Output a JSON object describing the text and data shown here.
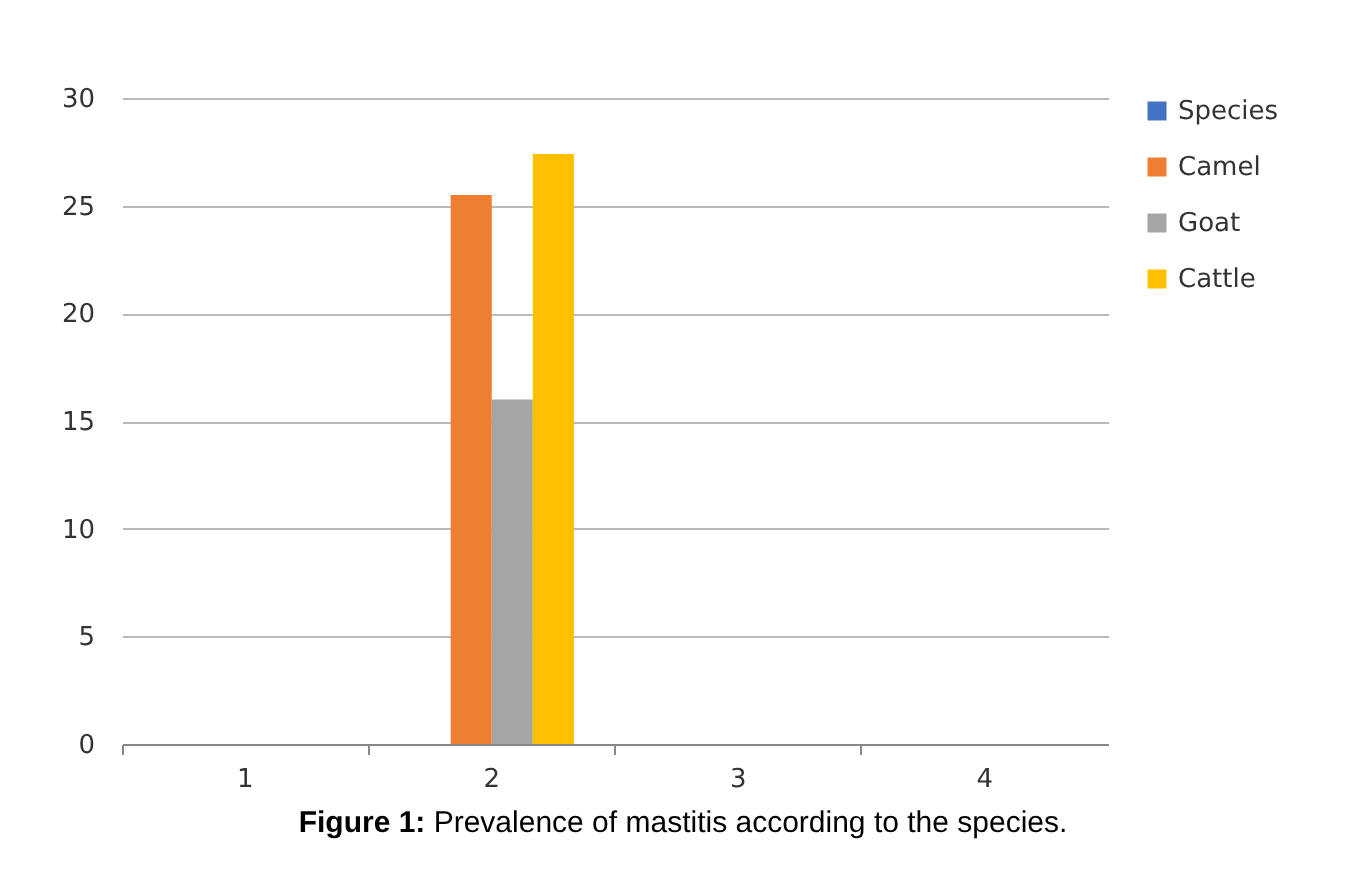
{
  "chart_data": {
    "type": "bar",
    "categories": [
      "1",
      "2",
      "3",
      "4"
    ],
    "series": [
      {
        "name": "Species",
        "color": "#4472c4",
        "values": [
          null,
          null,
          null,
          null
        ]
      },
      {
        "name": "Camel",
        "color": "#ed7d31",
        "values": [
          null,
          25.5,
          null,
          null
        ]
      },
      {
        "name": "Goat",
        "color": "#a5a5a5",
        "values": [
          null,
          16,
          null,
          null
        ]
      },
      {
        "name": "Cattle",
        "color": "#ffc000",
        "values": [
          null,
          27.4,
          null,
          null
        ]
      }
    ],
    "ylim": [
      0,
      30
    ],
    "yticks": [
      0,
      5,
      10,
      15,
      20,
      25,
      30
    ],
    "grid": "y",
    "legend": "right",
    "annotations": [
      "Figure 1:",
      "Prevalence of mastitis according to the species."
    ]
  }
}
